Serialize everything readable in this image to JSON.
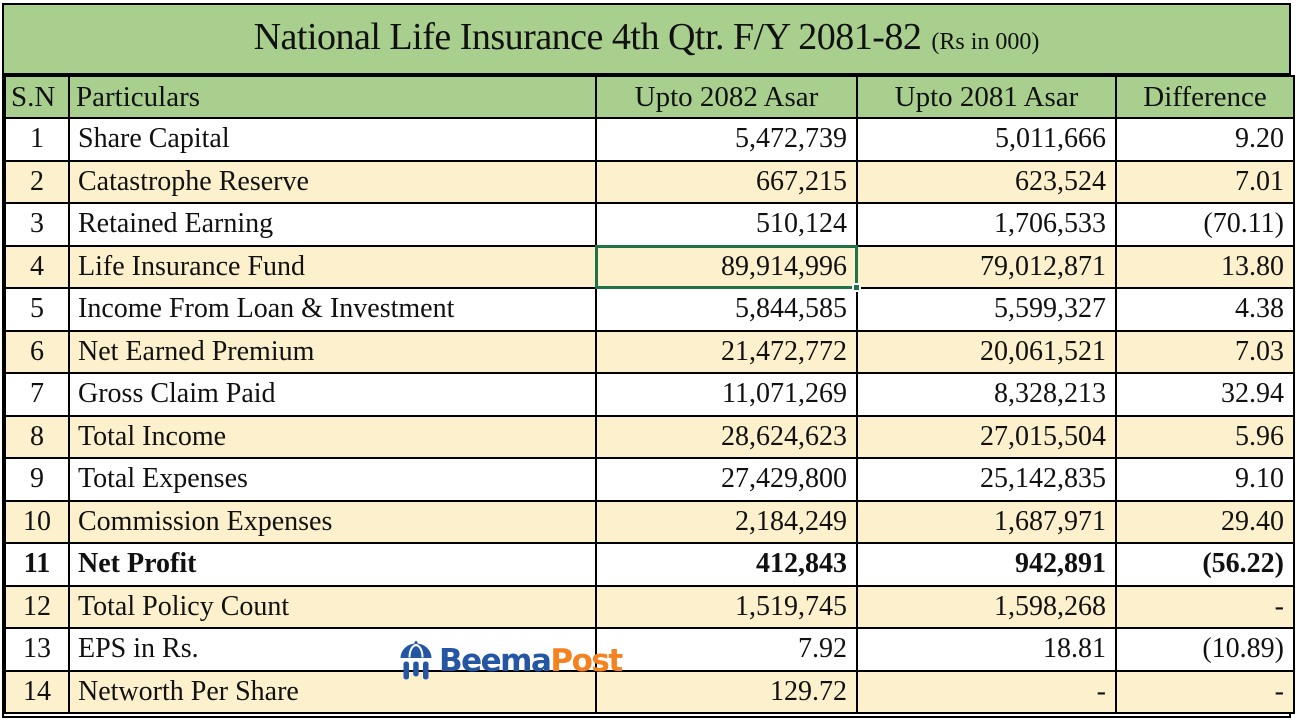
{
  "chart_data": {
    "type": "table",
    "title": "National Life Insurance 4th Qtr. F/Y 2081-82",
    "unit_note": "(Rs in 000)",
    "columns": [
      "S.N",
      "Particulars",
      "Upto 2082 Asar",
      "Upto 2081 Asar",
      "Difference"
    ],
    "rows": [
      {
        "sn": "1",
        "particulars": "Share Capital",
        "upto_2082_asar": "5,472,739",
        "upto_2081_asar": "5,011,666",
        "difference": "9.20"
      },
      {
        "sn": "2",
        "particulars": "Catastrophe Reserve",
        "upto_2082_asar": "667,215",
        "upto_2081_asar": "623,524",
        "difference": "7.01"
      },
      {
        "sn": "3",
        "particulars": "Retained Earning",
        "upto_2082_asar": "510,124",
        "upto_2081_asar": "1,706,533",
        "difference": "(70.11)"
      },
      {
        "sn": "4",
        "particulars": "Life Insurance Fund",
        "upto_2082_asar": "89,914,996",
        "upto_2081_asar": "79,012,871",
        "difference": "13.80"
      },
      {
        "sn": "5",
        "particulars": "Income From Loan & Investment",
        "upto_2082_asar": "5,844,585",
        "upto_2081_asar": "5,599,327",
        "difference": "4.38"
      },
      {
        "sn": "6",
        "particulars": "Net Earned Premium",
        "upto_2082_asar": "21,472,772",
        "upto_2081_asar": "20,061,521",
        "difference": "7.03"
      },
      {
        "sn": "7",
        "particulars": "Gross Claim Paid",
        "upto_2082_asar": "11,071,269",
        "upto_2081_asar": "8,328,213",
        "difference": "32.94"
      },
      {
        "sn": "8",
        "particulars": "Total Income",
        "upto_2082_asar": "28,624,623",
        "upto_2081_asar": "27,015,504",
        "difference": "5.96"
      },
      {
        "sn": "9",
        "particulars": "Total Expenses",
        "upto_2082_asar": "27,429,800",
        "upto_2081_asar": "25,142,835",
        "difference": "9.10"
      },
      {
        "sn": "10",
        "particulars": "Commission Expenses",
        "upto_2082_asar": "2,184,249",
        "upto_2081_asar": "1,687,971",
        "difference": "29.40"
      },
      {
        "sn": "11",
        "particulars": "Net Profit",
        "upto_2082_asar": "412,843",
        "upto_2081_asar": "942,891",
        "difference": "(56.22)",
        "emphasis": true
      },
      {
        "sn": "12",
        "particulars": "Total Policy Count",
        "upto_2082_asar": "1,519,745",
        "upto_2081_asar": "1,598,268",
        "difference": "-"
      },
      {
        "sn": "13",
        "particulars": "EPS in Rs.",
        "upto_2082_asar": "7.92",
        "upto_2081_asar": "18.81",
        "difference": "(10.89)"
      },
      {
        "sn": "14",
        "particulars": "Networth Per Share",
        "upto_2082_asar": "129.72",
        "upto_2081_asar": "-",
        "difference": "-"
      }
    ],
    "layout": {
      "grid": true,
      "alt_row_shading": "even rows cream, odd rows white",
      "number_alignment": "right",
      "legend_position": "none"
    }
  },
  "selection": {
    "row_sn": "4",
    "column": "Upto 2082 Asar",
    "column_index": 2,
    "value": "89,914,996"
  },
  "logo": {
    "name": "BeemaPost",
    "text_primary": "Beema",
    "text_secondary": "Post",
    "icon": "umbrella-columns-icon"
  },
  "colors": {
    "title_header_bg": "#a9cf8e",
    "row_cream": "#fdf0cd",
    "row_white": "#ffffff",
    "grid_line": "#000000",
    "selection_green": "#217346",
    "logo_blue": "#2456a4",
    "logo_orange": "#f58220",
    "text": "#111111"
  }
}
